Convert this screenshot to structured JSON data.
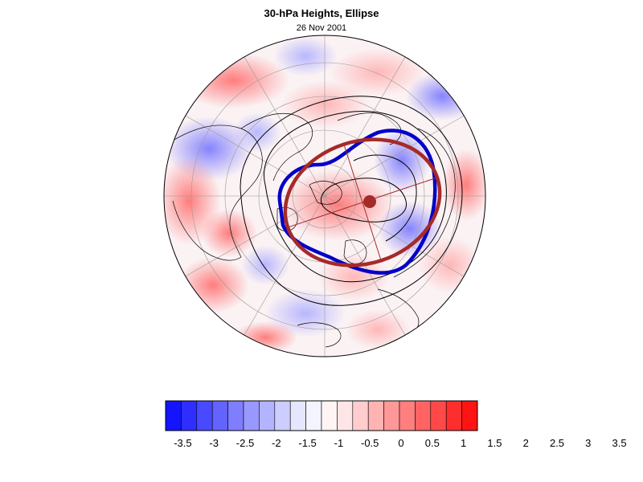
{
  "title": "30-hPa Heights, Ellipse",
  "subtitle": "26 Nov 2001",
  "colorbar": {
    "colors": [
      "#1414ff",
      "#2e2eff",
      "#4949ff",
      "#6363ff",
      "#7e7eff",
      "#9898ff",
      "#b3b3ff",
      "#cdcdff",
      "#e6e6ff",
      "#f4f4ff",
      "#fff4f4",
      "#ffe6e6",
      "#ffcdcd",
      "#ffb3b3",
      "#ff9898",
      "#ff7e7e",
      "#ff6363",
      "#ff4949",
      "#ff2e2e",
      "#ff1414"
    ],
    "tick_labels": [
      "-3.5",
      "-3",
      "-2.5",
      "-2",
      "-1.5",
      "-1",
      "-0.5",
      "0",
      "0.5",
      "1",
      "1.5",
      "2",
      "2.5",
      "3",
      "3.5"
    ]
  },
  "map": {
    "projection": "polar-stereographic-north",
    "ellipse_color": "#a52a2a",
    "vortex_contour_color": "#0000c8",
    "center_marker_color": "#a52a2a"
  }
}
